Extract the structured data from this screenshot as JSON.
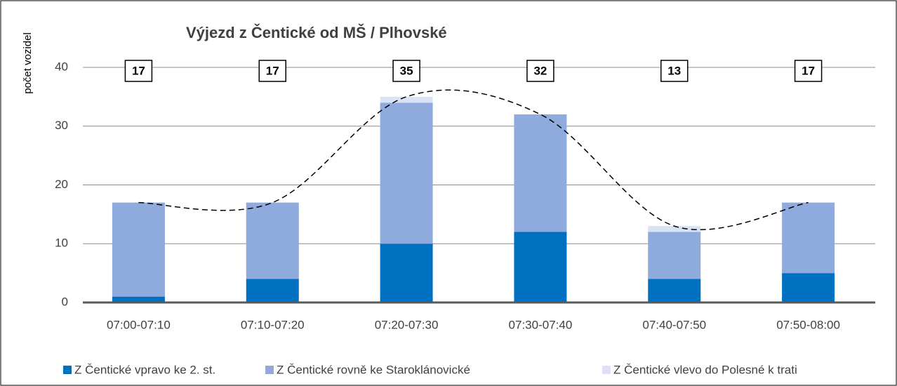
{
  "chart_data": {
    "type": "bar",
    "stacked": true,
    "title": "Výjezd z Čentické od MŠ / Plhovské",
    "y_label": "počet vozidel",
    "categories": [
      "07:00-07:10",
      "07:10-07:20",
      "07:20-07:30",
      "07:30-07:40",
      "07:40-07:50",
      "07:50-08:00"
    ],
    "series": [
      {
        "name": "Z Čentické vpravo ke 2. st.",
        "color": "#0070c0",
        "values": [
          1,
          4,
          10,
          12,
          4,
          5
        ]
      },
      {
        "name": "Z Čentické rovně ke Staroklánovické",
        "color": "#8faadc",
        "values": [
          16,
          13,
          24,
          20,
          8,
          12
        ]
      },
      {
        "name": "Z Čentické vlevo do Polesné k trati",
        "color": "#dae3f3",
        "values": [
          0,
          0,
          1,
          0,
          1,
          0
        ]
      }
    ],
    "totals": [
      17,
      17,
      35,
      32,
      13,
      17
    ],
    "ylim": [
      0,
      40
    ],
    "yticks": [
      0,
      10,
      20,
      30,
      40
    ],
    "grid": true,
    "legend": "bottom"
  }
}
